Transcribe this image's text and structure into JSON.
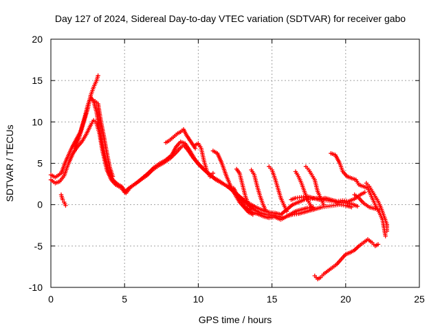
{
  "chart_data": {
    "type": "scatter",
    "title": "Day 127 of 2024, Sidereal Day-to-day VTEC variation (SDTVAR) for receiver gabo",
    "xlabel": "GPS time / hours",
    "ylabel": "SDTVAR / TECUs",
    "xlim": [
      0,
      25
    ],
    "ylim": [
      -10,
      20
    ],
    "x_ticks": [
      "0",
      "5",
      "10",
      "15",
      "20",
      "25"
    ],
    "y_ticks": [
      "-10",
      "-5",
      "0",
      "5",
      "10",
      "15",
      "20"
    ],
    "grid": true,
    "marker": "+",
    "color": "#ff0000",
    "series": [
      {
        "points": [
          [
            0.0,
            3.0
          ],
          [
            0.3,
            2.6
          ],
          [
            0.6,
            2.8
          ],
          [
            0.9,
            3.5
          ],
          [
            1.2,
            5.0
          ],
          [
            1.5,
            6.2
          ],
          [
            1.8,
            7.0
          ],
          [
            2.1,
            7.6
          ],
          [
            2.4,
            8.5
          ],
          [
            2.7,
            9.6
          ],
          [
            2.9,
            10.2
          ],
          [
            3.1,
            9.8
          ],
          [
            3.3,
            8.6
          ],
          [
            3.5,
            6.5
          ],
          [
            3.8,
            4.2
          ],
          [
            4.1,
            3.0
          ],
          [
            4.4,
            2.4
          ],
          [
            4.8,
            2.0
          ],
          [
            5.0,
            1.5
          ],
          [
            5.3,
            2.0
          ],
          [
            5.7,
            2.5
          ],
          [
            6.1,
            3.0
          ],
          [
            6.5,
            3.5
          ],
          [
            6.9,
            4.2
          ],
          [
            7.3,
            4.7
          ],
          [
            7.7,
            5.1
          ],
          [
            8.1,
            5.6
          ],
          [
            8.5,
            6.3
          ],
          [
            8.8,
            6.9
          ],
          [
            9.0,
            7.2
          ],
          [
            9.3,
            6.6
          ],
          [
            9.6,
            5.8
          ],
          [
            10.0,
            4.9
          ],
          [
            10.4,
            4.2
          ],
          [
            10.8,
            3.6
          ],
          [
            11.2,
            3.0
          ],
          [
            11.6,
            2.6
          ],
          [
            12.0,
            2.2
          ],
          [
            12.4,
            1.6
          ],
          [
            12.8,
            1.0
          ],
          [
            13.2,
            0.4
          ],
          [
            13.6,
            0.0
          ],
          [
            14.0,
            -0.4
          ],
          [
            14.4,
            -0.7
          ],
          [
            14.8,
            -0.9
          ],
          [
            15.2,
            -1.0
          ],
          [
            15.6,
            -1.2
          ],
          [
            16.0,
            -0.6
          ],
          [
            16.4,
            0.0
          ],
          [
            16.8,
            0.3
          ],
          [
            17.2,
            0.6
          ],
          [
            17.6,
            0.7
          ],
          [
            18.0,
            0.8
          ],
          [
            18.4,
            0.6
          ],
          [
            18.8,
            0.5
          ],
          [
            19.2,
            0.4
          ],
          [
            19.6,
            0.2
          ],
          [
            20.0,
            0.2
          ],
          [
            20.4,
            0.1
          ],
          [
            20.8,
            -0.2
          ]
        ]
      },
      {
        "points": [
          [
            0.0,
            3.6
          ],
          [
            0.3,
            3.3
          ],
          [
            0.7,
            3.8
          ],
          [
            1.0,
            5.2
          ],
          [
            1.4,
            6.8
          ],
          [
            1.7,
            7.8
          ],
          [
            2.0,
            8.8
          ],
          [
            2.3,
            10.6
          ],
          [
            2.5,
            12.0
          ],
          [
            2.7,
            13.0
          ],
          [
            2.9,
            12.5
          ],
          [
            3.1,
            11.2
          ],
          [
            3.3,
            9.0
          ],
          [
            3.6,
            6.4
          ],
          [
            3.9,
            4.0
          ],
          [
            4.2,
            3.0
          ],
          [
            4.5,
            2.5
          ],
          [
            4.8,
            2.2
          ],
          [
            5.1,
            1.4
          ],
          [
            5.4,
            2.1
          ],
          [
            5.8,
            2.6
          ],
          [
            6.2,
            3.2
          ],
          [
            6.6,
            3.8
          ],
          [
            7.0,
            4.5
          ],
          [
            7.4,
            5.0
          ],
          [
            7.8,
            5.4
          ],
          [
            8.2,
            6.0
          ],
          [
            8.5,
            7.0
          ],
          [
            8.8,
            7.6
          ],
          [
            9.1,
            7.4
          ],
          [
            9.4,
            6.6
          ],
          [
            9.8,
            5.4
          ],
          [
            10.2,
            4.6
          ],
          [
            10.6,
            3.9
          ],
          [
            11.0,
            3.3
          ],
          [
            11.4,
            2.9
          ],
          [
            11.8,
            2.4
          ],
          [
            12.2,
            1.9
          ],
          [
            12.6,
            1.2
          ],
          [
            13.0,
            0.6
          ],
          [
            13.4,
            0.0
          ],
          [
            13.8,
            -0.6
          ],
          [
            14.2,
            -1.0
          ],
          [
            14.6,
            -1.2
          ],
          [
            15.0,
            -1.3
          ],
          [
            15.4,
            -1.4
          ],
          [
            15.8,
            -1.6
          ],
          [
            16.2,
            -1.2
          ],
          [
            16.6,
            -0.8
          ],
          [
            17.0,
            -0.6
          ],
          [
            17.4,
            -0.4
          ],
          [
            17.8,
            -0.3
          ]
        ]
      },
      {
        "points": [
          [
            1.6,
            6.8
          ],
          [
            1.9,
            8.0
          ],
          [
            2.2,
            9.8
          ],
          [
            2.5,
            11.6
          ],
          [
            2.7,
            13.2
          ],
          [
            2.9,
            14.2
          ],
          [
            3.1,
            15.0
          ],
          [
            3.2,
            15.6
          ]
        ]
      },
      {
        "points": [
          [
            3.0,
            12.5
          ],
          [
            3.2,
            12.2
          ],
          [
            3.4,
            10.0
          ],
          [
            3.6,
            8.2
          ],
          [
            3.8,
            6.2
          ],
          [
            4.0,
            4.5
          ],
          [
            4.2,
            3.4
          ]
        ]
      },
      {
        "points": [
          [
            0.7,
            1.2
          ],
          [
            0.8,
            0.6
          ],
          [
            0.9,
            0.3
          ],
          [
            1.0,
            -0.1
          ]
        ]
      },
      {
        "points": [
          [
            7.8,
            7.5
          ],
          [
            8.0,
            7.7
          ],
          [
            8.2,
            8.0
          ],
          [
            8.4,
            8.3
          ],
          [
            8.6,
            8.6
          ],
          [
            8.8,
            8.8
          ],
          [
            9.0,
            9.1
          ],
          [
            9.2,
            8.4
          ],
          [
            9.5,
            7.6
          ],
          [
            9.8,
            6.8
          ]
        ]
      },
      {
        "points": [
          [
            9.8,
            7.2
          ],
          [
            10.0,
            7.4
          ],
          [
            10.2,
            6.8
          ],
          [
            10.4,
            5.2
          ],
          [
            10.6,
            4.0
          ],
          [
            10.8,
            3.4
          ],
          [
            11.0,
            3.8
          ]
        ]
      },
      {
        "points": [
          [
            11.0,
            6.5
          ],
          [
            11.3,
            6.2
          ],
          [
            11.6,
            5.0
          ],
          [
            11.9,
            3.5
          ],
          [
            12.2,
            2.2
          ],
          [
            12.5,
            1.2
          ],
          [
            12.8,
            0.3
          ],
          [
            13.1,
            -0.3
          ],
          [
            13.4,
            -0.9
          ],
          [
            13.7,
            -1.2
          ]
        ]
      },
      {
        "points": [
          [
            12.4,
            2.0
          ],
          [
            12.8,
            0.6
          ],
          [
            13.2,
            -0.3
          ],
          [
            13.6,
            -0.9
          ],
          [
            14.0,
            -1.1
          ],
          [
            14.4,
            -1.4
          ],
          [
            14.8,
            -1.6
          ],
          [
            15.2,
            -1.5
          ],
          [
            15.6,
            -1.8
          ],
          [
            16.0,
            -1.4
          ],
          [
            16.4,
            -1.2
          ],
          [
            16.8,
            -1.1
          ],
          [
            17.2,
            -0.9
          ],
          [
            17.6,
            -0.7
          ],
          [
            18.0,
            -0.5
          ],
          [
            18.4,
            -0.3
          ],
          [
            18.8,
            -0.2
          ],
          [
            19.2,
            -0.1
          ],
          [
            19.6,
            0.0
          ],
          [
            20.0,
            -0.1
          ],
          [
            20.4,
            -0.3
          ]
        ]
      },
      {
        "points": [
          [
            12.6,
            4.3
          ],
          [
            12.8,
            3.8
          ],
          [
            13.0,
            2.4
          ],
          [
            13.2,
            1.0
          ],
          [
            13.4,
            0.0
          ],
          [
            13.6,
            -0.6
          ]
        ]
      },
      {
        "points": [
          [
            13.6,
            4.2
          ],
          [
            13.8,
            3.6
          ],
          [
            14.0,
            2.2
          ],
          [
            14.2,
            1.0
          ],
          [
            14.4,
            0.0
          ],
          [
            14.6,
            -0.8
          ]
        ]
      },
      {
        "points": [
          [
            14.8,
            4.6
          ],
          [
            15.0,
            4.2
          ],
          [
            15.2,
            3.2
          ],
          [
            15.4,
            2.0
          ],
          [
            15.6,
            0.8
          ],
          [
            15.8,
            0.0
          ],
          [
            16.0,
            -0.8
          ]
        ]
      },
      {
        "points": [
          [
            16.6,
            4.0
          ],
          [
            16.8,
            3.4
          ],
          [
            17.0,
            2.6
          ],
          [
            17.2,
            1.6
          ],
          [
            17.4,
            0.6
          ],
          [
            17.6,
            0.0
          ],
          [
            17.8,
            -0.6
          ]
        ]
      },
      {
        "points": [
          [
            17.3,
            4.6
          ],
          [
            17.5,
            4.2
          ],
          [
            17.7,
            3.6
          ],
          [
            17.9,
            3.0
          ],
          [
            18.1,
            1.6
          ],
          [
            18.3,
            0.8
          ],
          [
            18.5,
            0.0
          ]
        ]
      },
      {
        "points": [
          [
            16.3,
            0.6
          ],
          [
            16.6,
            0.8
          ],
          [
            17.0,
            0.9
          ],
          [
            17.4,
            1.0
          ],
          [
            17.8,
            0.8
          ],
          [
            18.2,
            0.6
          ],
          [
            18.6,
            0.8
          ],
          [
            19.0,
            0.6
          ],
          [
            19.4,
            0.4
          ],
          [
            19.8,
            0.5
          ],
          [
            20.2,
            0.4
          ],
          [
            20.6,
            0.7
          ],
          [
            21.0,
            1.2
          ],
          [
            21.3,
            1.5
          ]
        ]
      },
      {
        "points": [
          [
            19.0,
            6.2
          ],
          [
            19.3,
            6.0
          ],
          [
            19.6,
            5.0
          ],
          [
            19.8,
            4.0
          ],
          [
            20.1,
            3.4
          ],
          [
            20.4,
            3.2
          ],
          [
            20.7,
            3.0
          ],
          [
            20.9,
            2.4
          ],
          [
            21.2,
            2.2
          ],
          [
            21.5,
            2.0
          ],
          [
            21.7,
            1.2
          ],
          [
            21.9,
            0.4
          ],
          [
            22.1,
            -0.4
          ],
          [
            22.3,
            -1.0
          ],
          [
            22.5,
            -1.8
          ],
          [
            22.6,
            -2.8
          ],
          [
            22.7,
            -3.8
          ]
        ]
      },
      {
        "points": [
          [
            21.4,
            2.6
          ],
          [
            21.6,
            2.2
          ],
          [
            21.8,
            1.6
          ],
          [
            22.0,
            1.0
          ],
          [
            22.2,
            0.4
          ],
          [
            22.4,
            -0.4
          ],
          [
            22.6,
            -1.4
          ],
          [
            22.8,
            -2.4
          ],
          [
            22.8,
            -3.2
          ]
        ]
      },
      {
        "points": [
          [
            20.6,
            1.2
          ],
          [
            20.9,
            0.8
          ],
          [
            21.2,
            0.2
          ],
          [
            21.6,
            -0.3
          ],
          [
            22.0,
            -0.5
          ],
          [
            22.3,
            -0.6
          ]
        ]
      },
      {
        "points": [
          [
            17.9,
            -8.6
          ],
          [
            18.1,
            -9.0
          ],
          [
            18.3,
            -8.8
          ],
          [
            18.5,
            -8.4
          ],
          [
            18.8,
            -8.0
          ],
          [
            19.1,
            -7.6
          ],
          [
            19.4,
            -7.2
          ],
          [
            19.7,
            -6.6
          ],
          [
            20.0,
            -6.0
          ],
          [
            20.3,
            -5.8
          ],
          [
            20.6,
            -5.5
          ],
          [
            20.9,
            -5.0
          ],
          [
            21.2,
            -4.6
          ],
          [
            21.5,
            -4.2
          ],
          [
            21.8,
            -4.6
          ],
          [
            22.0,
            -5.0
          ],
          [
            22.2,
            -4.8
          ]
        ]
      }
    ]
  }
}
